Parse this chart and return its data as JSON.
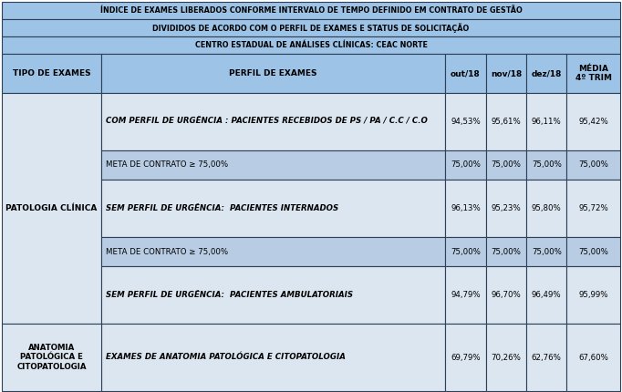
{
  "title1": "ÍNDICE DE EXAMES LIBERADOS CONFORME INTERVALO DE TEMPO DEFINIDO EM CONTRATO DE GESTÃO",
  "title2": "DIVIDIDOS DE ACORDO COM O PERFIL DE EXAMES E STATUS DE SOLICITAÇÃO",
  "title3": "CENTRO ESTADUAL DE ANÁLISES CLÍNICAS: CEAC NORTE",
  "col_headers": [
    "TIPO DE EXAMES",
    "PERFIL DE EXAMES",
    "out/18",
    "nov/18",
    "dez/18",
    "MÉDIA\n4º TRIM"
  ],
  "title_bg": "#9dc3e6",
  "header_bg": "#9dc3e6",
  "row_bg_light": "#dce6f1",
  "row_bg_mid": "#b8cce4",
  "border_color": "#2e4057",
  "rows": [
    {
      "tipo": "PATOLOGIA CLÍNICA",
      "tipo_rowspan": 5,
      "perfil": "COM PERFIL DE URGÊNCIA : PACIENTES RECEBIDOS DE PS / PA / C.C / C.O",
      "perfil_style": "bold_italic",
      "out": "94,53%",
      "nov": "95,61%",
      "dez": "96,11%",
      "media": "95,42%",
      "bg": "#dce6f1"
    },
    {
      "tipo": "",
      "perfil": "META DE CONTRATO ≥ 75,00%",
      "perfil_style": "normal",
      "out": "75,00%",
      "nov": "75,00%",
      "dez": "75,00%",
      "media": "75,00%",
      "bg": "#b8cce4"
    },
    {
      "tipo": "",
      "perfil": "SEM PERFIL DE URGÊNCIA:  PACIENTES INTERNADOS",
      "perfil_style": "bold_italic",
      "out": "96,13%",
      "nov": "95,23%",
      "dez": "95,80%",
      "media": "95,72%",
      "bg": "#dce6f1"
    },
    {
      "tipo": "",
      "perfil": "META DE CONTRATO ≥ 75,00%",
      "perfil_style": "normal",
      "out": "75,00%",
      "nov": "75,00%",
      "dez": "75,00%",
      "media": "75,00%",
      "bg": "#b8cce4"
    },
    {
      "tipo": "",
      "perfil": "SEM PERFIL DE URGÊNCIA:  PACIENTES AMBULATORIAIS",
      "perfil_style": "bold_italic",
      "out": "94,79%",
      "nov": "96,70%",
      "dez": "96,49%",
      "media": "95,99%",
      "bg": "#dce6f1"
    },
    {
      "tipo": "ANATOMIA\nPATOLÓGICA E\nCITOPATOLOGIA",
      "tipo_rowspan": 1,
      "perfil": "EXAMES DE ANATOMIA PATOLÓGICA E CITOPATOLOGIA",
      "perfil_style": "bold_italic",
      "out": "69,79%",
      "nov": "70,26%",
      "dez": "62,76%",
      "media": "67,60%",
      "bg": "#dce6f1"
    }
  ],
  "fig_w": 6.82,
  "fig_h": 4.3,
  "dpi": 100
}
